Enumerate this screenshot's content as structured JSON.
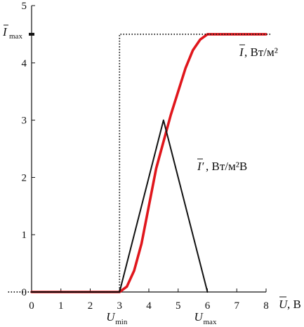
{
  "chart_data": {
    "type": "line",
    "xlim": [
      0,
      8
    ],
    "ylim": [
      0,
      5
    ],
    "x_ticks": [
      "0",
      "1",
      "2",
      "3",
      "4",
      "5",
      "6",
      "7",
      "8"
    ],
    "y_ticks": [
      "0",
      "1",
      "2",
      "3",
      "4",
      "5"
    ],
    "x_axis_label": {
      "symbol": "U",
      "unit": ", В"
    },
    "y_marker_label": {
      "symbol": "I",
      "subscript": "max"
    },
    "x_markers": [
      {
        "symbol": "U",
        "subscript": "min",
        "x": 3
      },
      {
        "symbol": "U",
        "subscript": "max",
        "x": 6
      }
    ],
    "grid": false,
    "series": [
      {
        "name_symbol": "I",
        "name_unit": ", Вт/м²",
        "color": "#e0161c",
        "style": "solid-thick",
        "x": [
          0,
          3.0,
          3.25,
          3.5,
          3.75,
          4.0,
          4.25,
          4.5,
          4.75,
          5.0,
          5.25,
          5.5,
          5.75,
          6.0,
          8
        ],
        "y": [
          0,
          0,
          0.094,
          0.375,
          0.844,
          1.5,
          2.156,
          2.625,
          3.094,
          3.5,
          3.906,
          4.219,
          4.406,
          4.5,
          4.5
        ]
      },
      {
        "name_symbol": "I′",
        "name_unit": ", Вт/м²В",
        "color": "#111111",
        "style": "solid",
        "x": [
          0,
          3,
          4.5,
          6
        ],
        "y": [
          0,
          0,
          3,
          0
        ]
      },
      {
        "name_symbol": "",
        "color": "#111111",
        "style": "dotted",
        "x": [
          -0.8,
          3,
          3,
          8.2
        ],
        "y": [
          0,
          0,
          4.5,
          4.5
        ]
      }
    ]
  }
}
